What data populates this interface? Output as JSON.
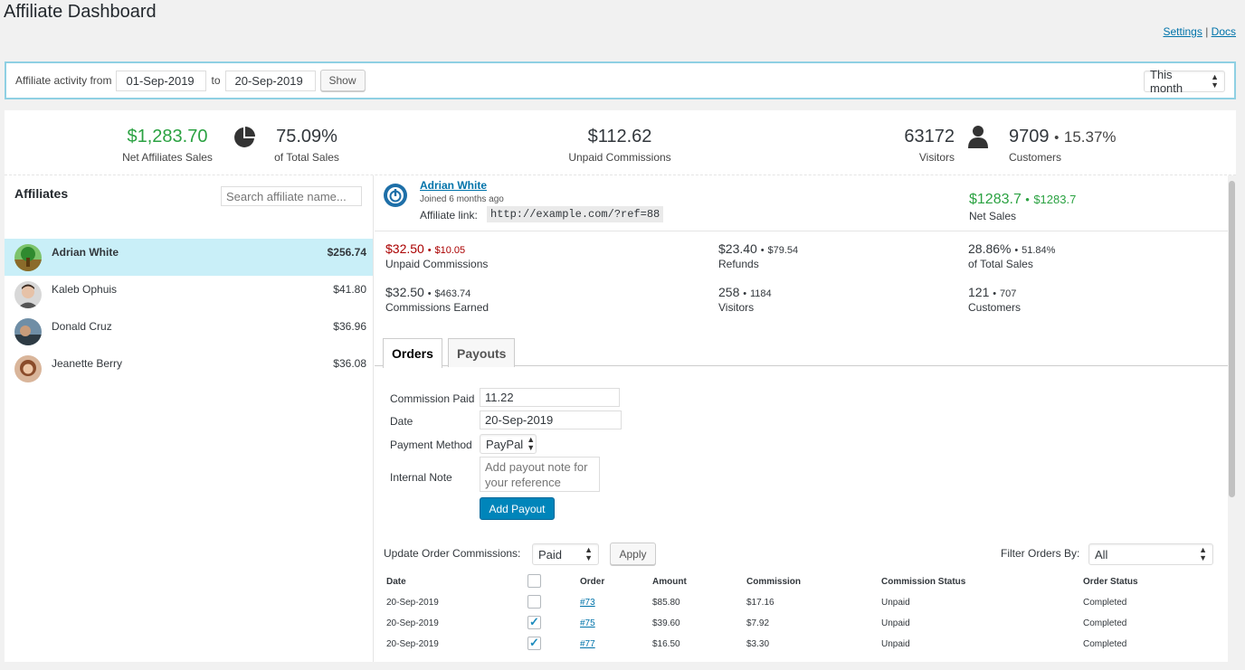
{
  "page": {
    "title": "Affiliate Dashboard",
    "links": {
      "settings": "Settings",
      "separator": "|",
      "docs": "Docs"
    }
  },
  "filter": {
    "label_from": "Affiliate activity from",
    "from_date": "01-Sep-2019",
    "label_to": "to",
    "to_date": "20-Sep-2019",
    "show_label": "Show",
    "period": "This month"
  },
  "stats": {
    "net_sales": "$1,283.70",
    "net_sales_label": "Net Affiliates Sales",
    "total_sales_pct": "75.09%",
    "total_sales_label": "of Total Sales",
    "unpaid": "$112.62",
    "unpaid_label": "Unpaid Commissions",
    "visitors": "63172",
    "visitors_label": "Visitors",
    "customers": "9709",
    "customers_pct": "15.37%",
    "customers_label": "Customers"
  },
  "sidebar": {
    "heading": "Affiliates",
    "search_placeholder": "Search affiliate name...",
    "affiliates": [
      {
        "name": "Adrian White",
        "amount": "$256.74"
      },
      {
        "name": "Kaleb Ophuis",
        "amount": "$41.80"
      },
      {
        "name": "Donald Cruz",
        "amount": "$36.96"
      },
      {
        "name": "Jeanette Berry",
        "amount": "$36.08"
      }
    ]
  },
  "detail": {
    "name": "Adrian White",
    "joined": "Joined 6 months ago",
    "link_label": "Affiliate link:",
    "link": "http://example.com/?ref=88",
    "net_sales_main": "$1283.7",
    "net_sales_sub": "$1283.7",
    "net_sales_label": "Net Sales",
    "metrics": {
      "unpaid_main": "$32.50",
      "unpaid_sub": "$10.05",
      "unpaid_label": "Unpaid Commissions",
      "refunds_main": "$23.40",
      "refunds_sub": "$79.54",
      "refunds_label": "Refunds",
      "share_main": "28.86%",
      "share_sub": "51.84%",
      "share_label": "of Total Sales",
      "earned_main": "$32.50",
      "earned_sub": "$463.74",
      "earned_label": "Commissions Earned",
      "visitors_main": "258",
      "visitors_sub": "1184",
      "visitors_label": "Visitors",
      "customers_main": "121",
      "customers_sub": "707",
      "customers_label": "Customers"
    },
    "tabs": [
      "Orders",
      "Payouts"
    ],
    "payout_form": {
      "commission_label": "Commission Paid",
      "commission_value": "11.22",
      "date_label": "Date",
      "date_value": "20-Sep-2019",
      "method_label": "Payment Method",
      "method_value": "PayPal",
      "note_label": "Internal Note",
      "note_placeholder": "Add payout note for your reference",
      "submit": "Add Payout"
    },
    "orders_controls": {
      "update_label": "Update Order Commissions:",
      "update_value": "Paid",
      "apply": "Apply",
      "filter_label": "Filter Orders By:",
      "filter_value": "All"
    },
    "orders_table": {
      "headers": [
        "Date",
        "Order",
        "Amount",
        "Commission",
        "Commission Status",
        "Order Status"
      ],
      "rows": [
        {
          "date": "20-Sep-2019",
          "checked": false,
          "order": "#73",
          "amount": "$85.80",
          "commission": "$17.16",
          "status": "Unpaid",
          "order_status": "Completed"
        },
        {
          "date": "20-Sep-2019",
          "checked": true,
          "order": "#75",
          "amount": "$39.60",
          "commission": "$7.92",
          "status": "Unpaid",
          "order_status": "Completed"
        },
        {
          "date": "20-Sep-2019",
          "checked": true,
          "order": "#77",
          "amount": "$16.50",
          "commission": "$3.30",
          "status": "Unpaid",
          "order_status": "Completed"
        }
      ]
    }
  },
  "colors": {
    "accent": "#0085ba",
    "positive": "#2ba242",
    "negative": "#aa0000",
    "active_row": "#c9eff8"
  },
  "icons": {
    "pie": "pie-chart-icon",
    "user": "user-icon",
    "logo": "power-logo-icon"
  }
}
